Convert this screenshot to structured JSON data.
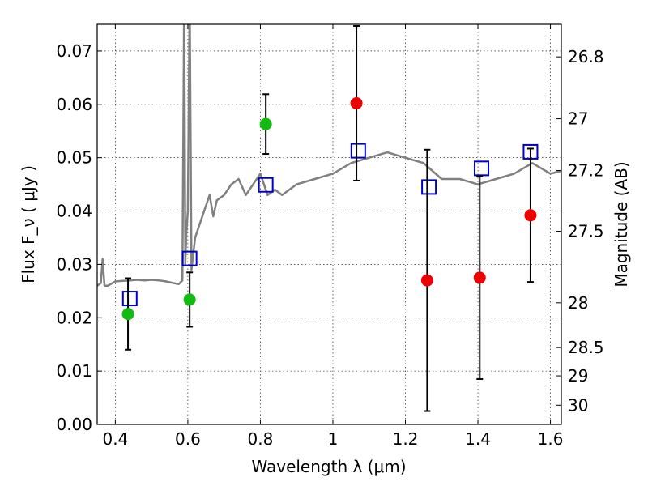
{
  "chart_data": {
    "type": "scatter",
    "xlabel": "Wavelength  λ (μm)",
    "ylabel": "Flux  F_ν  ( μJy )",
    "ylabel_right": "Magnitude (AB)",
    "xlim": [
      0.35,
      1.63
    ],
    "ylim": [
      0.0,
      0.075
    ],
    "x_ticks": [
      "0.4",
      "0.6",
      "0.8",
      "1",
      "1.2",
      "1.4",
      "1.6"
    ],
    "y_ticks": [
      "0.00",
      "0.01",
      "0.02",
      "0.03",
      "0.04",
      "0.05",
      "0.06",
      "0.07"
    ],
    "right_ticks": [
      {
        "label": "26.8",
        "flux": 0.0689
      },
      {
        "label": "27",
        "flux": 0.0573
      },
      {
        "label": "27.2",
        "flux": 0.0476
      },
      {
        "label": "27.5",
        "flux": 0.0362
      },
      {
        "label": "28",
        "flux": 0.0228
      },
      {
        "label": "28.5",
        "flux": 0.0144
      },
      {
        "label": "29",
        "flux": 0.0091
      },
      {
        "label": "30",
        "flux": 0.0036
      }
    ],
    "grid": true,
    "colors": {
      "template": "#808080",
      "model": "#0000cc",
      "green": "#11bb11",
      "red": "#ee0000",
      "errorbar": "#000000"
    },
    "series": [
      {
        "style": "line",
        "color": "#808080",
        "x": [
          0.35,
          0.36,
          0.365,
          0.37,
          0.375,
          0.38,
          0.4,
          0.42,
          0.44,
          0.46,
          0.48,
          0.5,
          0.52,
          0.54,
          0.56,
          0.575,
          0.585,
          0.59,
          0.593,
          0.596,
          0.6,
          0.605,
          0.61,
          0.62,
          0.63,
          0.65,
          0.66,
          0.67,
          0.68,
          0.7,
          0.72,
          0.74,
          0.76,
          0.78,
          0.8,
          0.82,
          0.84,
          0.86,
          0.9,
          0.95,
          1.0,
          1.05,
          1.1,
          1.15,
          1.2,
          1.25,
          1.3,
          1.35,
          1.4,
          1.45,
          1.5,
          1.55,
          1.6,
          1.63
        ],
        "y": [
          0.026,
          0.0265,
          0.031,
          0.026,
          0.026,
          0.026,
          0.0268,
          0.0269,
          0.027,
          0.0271,
          0.027,
          0.0271,
          0.027,
          0.0268,
          0.0265,
          0.0263,
          0.027,
          0.08,
          0.03,
          0.036,
          0.04,
          0.08,
          0.029,
          0.035,
          0.037,
          0.041,
          0.043,
          0.039,
          0.042,
          0.043,
          0.045,
          0.046,
          0.043,
          0.045,
          0.047,
          0.043,
          0.044,
          0.043,
          0.045,
          0.046,
          0.047,
          0.049,
          0.05,
          0.051,
          0.05,
          0.049,
          0.046,
          0.046,
          0.045,
          0.046,
          0.047,
          0.049,
          0.047,
          0.0475
        ]
      },
      {
        "style": "open-square",
        "color": "#0000cc",
        "x": [
          0.44,
          0.605,
          0.815,
          1.07,
          1.265,
          1.41,
          1.545
        ],
        "y": [
          0.0236,
          0.0311,
          0.0449,
          0.0513,
          0.0445,
          0.048,
          0.0511
        ]
      },
      {
        "style": "filled-circle",
        "color": "#11bb11",
        "x": [
          0.435,
          0.605,
          0.815
        ],
        "y": [
          0.0207,
          0.0234,
          0.0563
        ],
        "err": [
          0.0067,
          0.0051,
          0.0056
        ]
      },
      {
        "style": "filled-circle",
        "color": "#ee0000",
        "x": [
          1.065,
          1.26,
          1.405,
          1.545
        ],
        "y": [
          0.0602,
          0.027,
          0.0275,
          0.0392
        ],
        "err": [
          0.0145,
          0.0245,
          0.019,
          0.0125
        ]
      }
    ]
  }
}
